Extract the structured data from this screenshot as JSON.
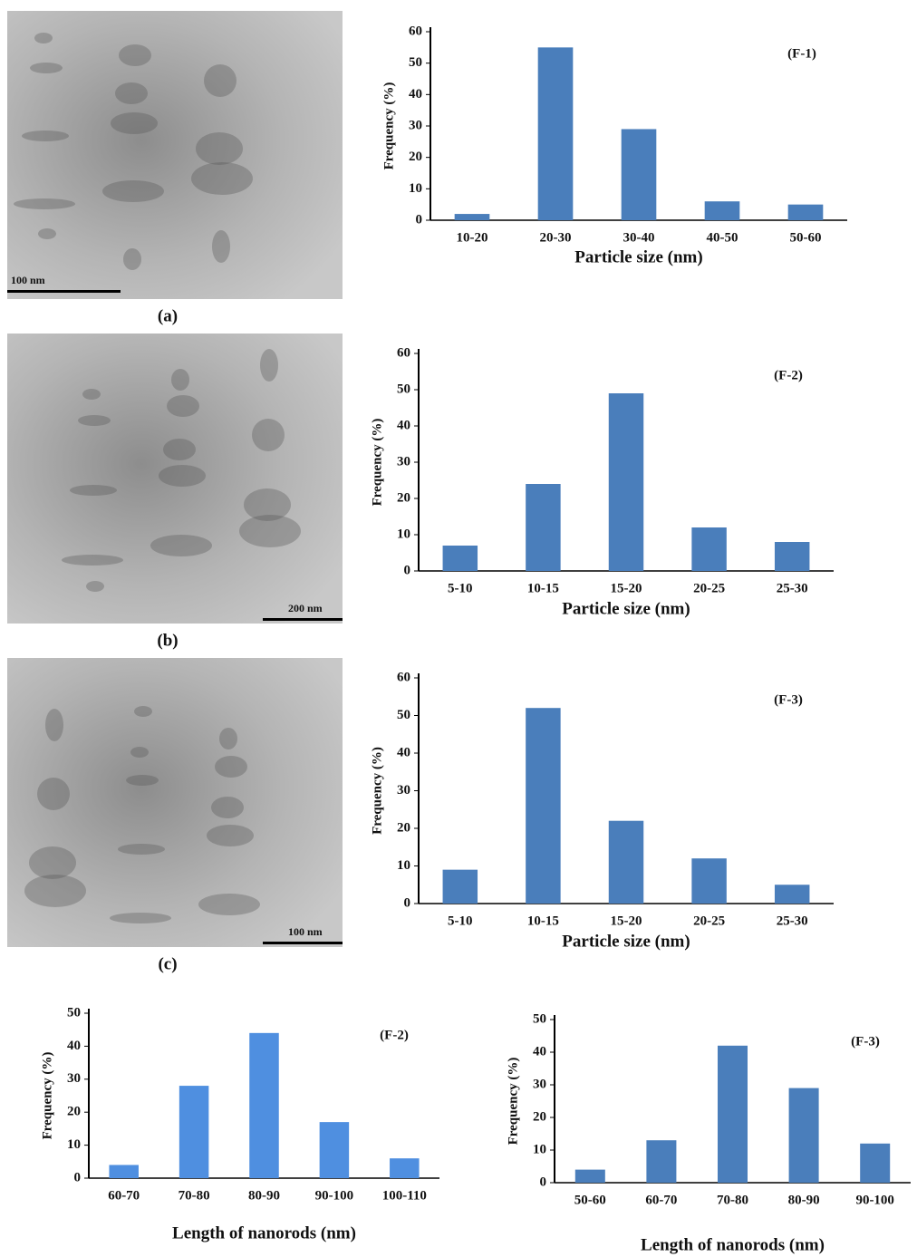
{
  "panels": [
    {
      "label": "(a)",
      "scale_bar": "100 nm"
    },
    {
      "label": "(b)",
      "scale_bar": "200 nm"
    },
    {
      "label": "(c)",
      "scale_bar": "100 nm"
    }
  ],
  "chart_data": [
    {
      "type": "bar",
      "annotation": "(F-1)",
      "x_label": "Particle size  (nm)",
      "y_label": "Frequency (%)",
      "categories": [
        "10-20",
        "20-30",
        "30-40",
        "40-50",
        "50-60"
      ],
      "values": [
        2,
        55,
        29,
        6,
        5
      ],
      "color": "#4a7ebb",
      "ylim": [
        0,
        60
      ],
      "yticks": [
        0,
        10,
        20,
        30,
        40,
        50,
        60
      ]
    },
    {
      "type": "bar",
      "annotation": "(F-2)",
      "x_label": "Particle size (nm)",
      "y_label": "Frequency (%)",
      "categories": [
        "5-10",
        "10-15",
        "15-20",
        "20-25",
        "25-30"
      ],
      "values": [
        7,
        24,
        49,
        12,
        8
      ],
      "color": "#4a7ebb",
      "ylim": [
        0,
        60
      ],
      "yticks": [
        0,
        10,
        20,
        30,
        40,
        50,
        60
      ]
    },
    {
      "type": "bar",
      "annotation": "(F-3)",
      "x_label": "Particle size (nm)",
      "y_label": "Frequency (%)",
      "categories": [
        "5-10",
        "10-15",
        "15-20",
        "20-25",
        "25-30"
      ],
      "values": [
        9,
        52,
        22,
        12,
        5
      ],
      "color": "#4a7ebb",
      "ylim": [
        0,
        60
      ],
      "yticks": [
        0,
        10,
        20,
        30,
        40,
        50,
        60
      ]
    },
    {
      "type": "bar",
      "annotation": "(F-2)",
      "x_label": "Length of nanorods (nm)",
      "y_label": "Frequency (%)",
      "categories": [
        "60-70",
        "70-80",
        "80-90",
        "90-100",
        "100-110"
      ],
      "values": [
        4,
        28,
        44,
        17,
        6
      ],
      "color": "#4f8fe0",
      "ylim": [
        0,
        50
      ],
      "yticks": [
        0,
        10,
        20,
        30,
        40,
        50
      ]
    },
    {
      "type": "bar",
      "annotation": "(F-3)",
      "x_label": "Length of nanorods (nm)",
      "y_label": "Frequency (%)",
      "categories": [
        "50-60",
        "60-70",
        "70-80",
        "80-90",
        "90-100"
      ],
      "values": [
        4,
        13,
        42,
        29,
        12
      ],
      "color": "#4a7ebb",
      "ylim": [
        0,
        50
      ],
      "yticks": [
        0,
        10,
        20,
        30,
        40,
        50
      ]
    }
  ]
}
